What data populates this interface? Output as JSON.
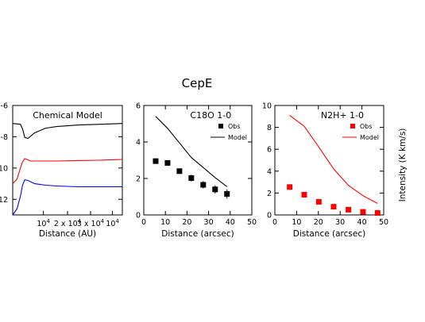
{
  "figure": {
    "title": "CepE"
  },
  "chart_data": [
    {
      "type": "line",
      "title": "Chemical Model",
      "xlabel": "Distance (AU)",
      "ylabel": "",
      "xlim": [
        0,
        5
      ],
      "ylim": [
        -13,
        -6
      ],
      "x_tick_labels": [
        {
          "x": 1.4,
          "text": "10",
          "sup": "4"
        },
        {
          "x": 2.5,
          "text": "2 x 10",
          "sup": "4"
        },
        {
          "x": 3.55,
          "text": "3 x 10",
          "sup": "4"
        },
        {
          "x": 4.55,
          "text": "10",
          "sup": "4"
        }
      ],
      "y_ticks": [
        {
          "y": -6,
          "label": "-6"
        },
        {
          "y": -8,
          "label": "-8"
        },
        {
          "y": -10,
          "label": "10"
        },
        {
          "y": -12,
          "label": "12"
        }
      ],
      "grid": false,
      "series": [
        {
          "color": "#000000",
          "x": [
            0,
            0.35,
            0.45,
            0.55,
            0.7,
            1.0,
            1.5,
            2.0,
            3.0,
            4.0,
            5.0
          ],
          "y": [
            -7.15,
            -7.2,
            -7.5,
            -8.05,
            -8.1,
            -7.75,
            -7.45,
            -7.35,
            -7.25,
            -7.2,
            -7.15
          ]
        },
        {
          "color": "#ff0000",
          "x": [
            0,
            0.2,
            0.35,
            0.45,
            0.55,
            0.65,
            0.8,
            1.2,
            2.0,
            3.0,
            4.0,
            5.0
          ],
          "y": [
            -11.0,
            -10.7,
            -10.0,
            -9.6,
            -9.4,
            -9.45,
            -9.55,
            -9.55,
            -9.55,
            -9.52,
            -9.5,
            -9.45
          ]
        },
        {
          "color": "#0000ff",
          "x": [
            0,
            0.2,
            0.35,
            0.45,
            0.55,
            0.7,
            1.0,
            1.5,
            2.0,
            3.0,
            4.0,
            5.0
          ],
          "y": [
            -13.0,
            -12.6,
            -11.8,
            -11.1,
            -10.75,
            -10.8,
            -11.0,
            -11.1,
            -11.15,
            -11.2,
            -11.2,
            -11.2
          ]
        }
      ]
    },
    {
      "type": "scatter",
      "title": "C18O 1-0",
      "xlabel": "Distance (arcsec)",
      "ylabel": "",
      "xlim": [
        0,
        50
      ],
      "ylim": [
        0,
        6
      ],
      "x_ticks": [
        0,
        10,
        20,
        30,
        40,
        50
      ],
      "y_ticks": [
        0,
        2,
        4,
        6
      ],
      "grid": false,
      "legend": {
        "placement": "top-right",
        "entries": [
          "Obs",
          "Model"
        ]
      },
      "series": [
        {
          "name": "Obs",
          "color": "#000000",
          "marker": "square",
          "x": [
            5.5,
            11,
            16.5,
            22,
            27.5,
            33,
            38.5
          ],
          "y": [
            2.95,
            2.85,
            2.4,
            2.02,
            1.65,
            1.4,
            1.15
          ],
          "err": [
            0.1,
            0.1,
            0.15,
            0.18,
            0.2,
            0.22,
            0.25
          ]
        },
        {
          "name": "Model",
          "color": "#000000",
          "marker": "none",
          "x": [
            5.5,
            11,
            16.5,
            22,
            27.5,
            33,
            38.5
          ],
          "y": [
            5.4,
            4.75,
            3.95,
            3.15,
            2.6,
            2.05,
            1.55
          ]
        }
      ]
    },
    {
      "type": "scatter",
      "title": "N2H+ 1-0",
      "xlabel": "Distance (arcsec)",
      "ylabel": "Intensity (K km/s)",
      "xlim": [
        0,
        50
      ],
      "ylim": [
        0,
        10
      ],
      "x_ticks": [
        0,
        10,
        20,
        30,
        40,
        50
      ],
      "y_ticks": [
        0,
        2,
        4,
        6,
        8,
        10
      ],
      "grid": false,
      "legend": {
        "placement": "top-right",
        "entries": [
          "Obs",
          "Model"
        ]
      },
      "series": [
        {
          "name": "Obs",
          "color": "#ff0000",
          "marker": "square",
          "x": [
            6.8,
            13.5,
            20.2,
            27,
            33.8,
            40.5,
            47.2
          ],
          "y": [
            2.55,
            1.85,
            1.2,
            0.75,
            0.48,
            0.28,
            0.18
          ],
          "err": [
            0.15,
            0.12,
            0.15,
            0.15,
            0.18,
            0.15,
            0.12
          ]
        },
        {
          "name": "Model",
          "color": "#ff0000",
          "marker": "none",
          "x": [
            6.8,
            13.5,
            20.2,
            27,
            33.8,
            40.5,
            47.2
          ],
          "y": [
            9.1,
            8.1,
            6.2,
            4.2,
            2.7,
            1.75,
            1.05
          ]
        }
      ]
    }
  ]
}
